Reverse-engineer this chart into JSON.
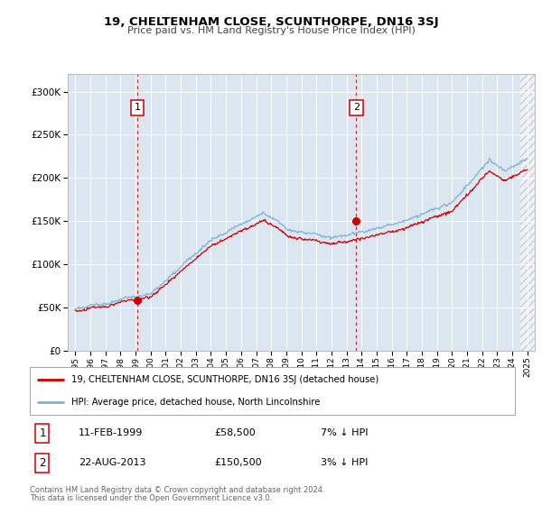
{
  "title": "19, CHELTENHAM CLOSE, SCUNTHORPE, DN16 3SJ",
  "subtitle": "Price paid vs. HM Land Registry's House Price Index (HPI)",
  "sale1_date": 1999.12,
  "sale1_price": 58500,
  "sale1_date_str": "11-FEB-1999",
  "sale1_hpi_pct": "7% ↓ HPI",
  "sale2_date": 2013.65,
  "sale2_price": 150500,
  "sale2_date_str": "22-AUG-2013",
  "sale2_hpi_pct": "3% ↓ HPI",
  "ylim_max": 320000,
  "xlim_start": 1994.5,
  "xlim_end": 2025.5,
  "legend_label1": "19, CHELTENHAM CLOSE, SCUNTHORPE, DN16 3SJ (detached house)",
  "legend_label2": "HPI: Average price, detached house, North Lincolnshire",
  "footer1": "Contains HM Land Registry data © Crown copyright and database right 2024.",
  "footer2": "This data is licensed under the Open Government Licence v3.0.",
  "hpi_color": "#7ab4d8",
  "price_color": "#cc0000",
  "bg_color": "#dce6f1",
  "grid_color": "#ffffff",
  "box_color": "#cc0000"
}
